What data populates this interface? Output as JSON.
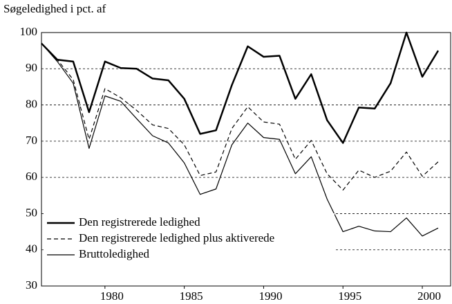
{
  "chart_data": {
    "type": "line",
    "ylabel": "Søgeledighed i pct. af",
    "x": [
      1976,
      1977,
      1978,
      1979,
      1980,
      1981,
      1982,
      1983,
      1984,
      1985,
      1986,
      1987,
      1988,
      1989,
      1990,
      1991,
      1992,
      1993,
      1994,
      1995,
      1996,
      1997,
      1998,
      1999,
      2000,
      2001
    ],
    "series": [
      {
        "name": "Den registrerede ledighed",
        "color": "#000000",
        "width": 2.5,
        "dash": "none",
        "values": [
          97,
          92.5,
          92,
          78,
          92,
          90.2,
          90,
          87.3,
          86.8,
          81.7,
          72,
          73,
          85.5,
          96.2,
          93.3,
          93.6,
          81.7,
          88.5,
          75.8,
          69.5,
          79.3,
          79,
          86,
          100,
          87.8,
          95
        ]
      },
      {
        "name": "Den registrerede ledighed plus aktiverede",
        "color": "#000000",
        "width": 1.2,
        "dash": "6,4",
        "values": [
          97,
          92.5,
          87,
          70.5,
          84.5,
          82,
          78.5,
          74.5,
          73.5,
          69,
          60.5,
          61.5,
          73.5,
          79.5,
          75.3,
          74.7,
          65,
          70.2,
          61,
          56.5,
          62,
          60,
          61.7,
          67,
          60.3,
          64.3
        ]
      },
      {
        "name": "Bruttoledighed",
        "color": "#000000",
        "width": 1.2,
        "dash": "none",
        "values": [
          97,
          92,
          86,
          68,
          82.5,
          81,
          76.2,
          71.5,
          69.5,
          64,
          55.3,
          56.8,
          69,
          75,
          71,
          70.5,
          61,
          65.7,
          54,
          45,
          46.5,
          45.2,
          45,
          48.8,
          43.8,
          46
        ]
      }
    ],
    "xlim": [
      1976,
      2001
    ],
    "xticks": [
      1980,
      1985,
      1990,
      1995,
      2000
    ],
    "ylim": [
      30,
      100
    ],
    "yticks": [
      30,
      40,
      50,
      60,
      70,
      80,
      90,
      100
    ],
    "grid": true,
    "legend": "lower left"
  }
}
